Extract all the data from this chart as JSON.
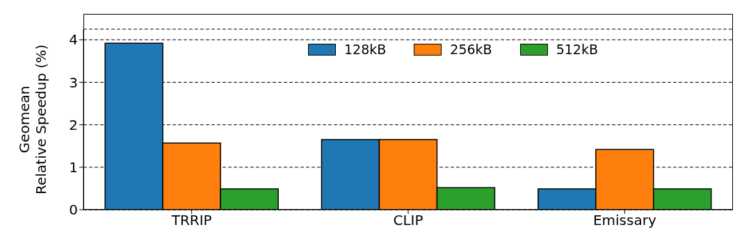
{
  "chart_data": {
    "type": "bar",
    "ylabel": "Geomean\nRelative Speedup (%)",
    "categories": [
      "TRRIP",
      "CLIP",
      "Emissary"
    ],
    "series": [
      {
        "name": "128kB",
        "color": "#1f77b4",
        "values": [
          3.92,
          1.65,
          0.49
        ]
      },
      {
        "name": "256kB",
        "color": "#ff7f0e",
        "values": [
          1.57,
          1.65,
          1.42
        ]
      },
      {
        "name": "512kB",
        "color": "#2ca02c",
        "values": [
          0.49,
          0.52,
          0.49
        ]
      }
    ],
    "ylim": [
      0,
      4.25
    ],
    "yticks": [
      0,
      1,
      2,
      3,
      4
    ],
    "grid": "y",
    "legend": "top"
  }
}
